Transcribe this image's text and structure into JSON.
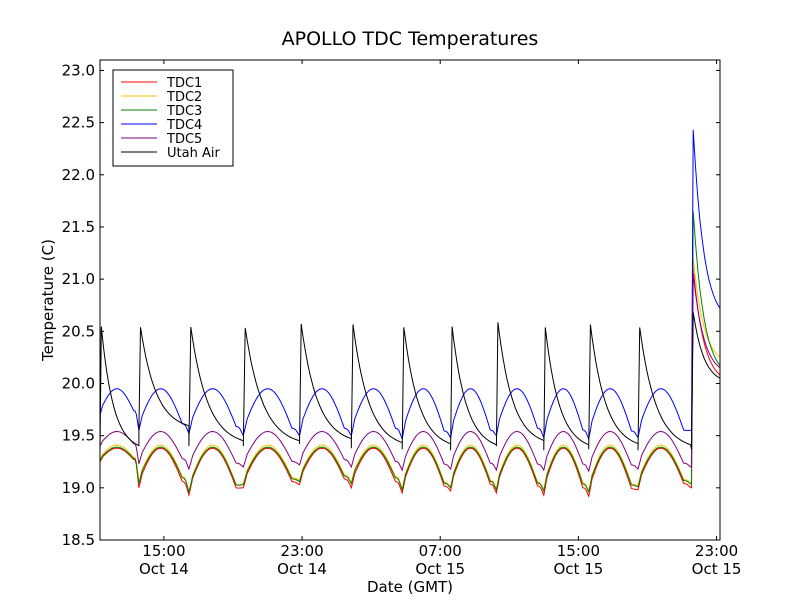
{
  "chart_data": {
    "type": "line",
    "title": "APOLLO TDC Temperatures",
    "xlabel": "Date (GMT)",
    "ylabel": "Temperature (C)",
    "xlim_hours": [
      11.3,
      47.2
    ],
    "ylim": [
      18.5,
      23.1
    ],
    "grid": false,
    "legend_position": "top-left",
    "x_ticks": [
      {
        "hour": 15,
        "time": "15:00",
        "date": "Oct 14"
      },
      {
        "hour": 23,
        "time": "23:00",
        "date": "Oct 14"
      },
      {
        "hour": 31,
        "time": "07:00",
        "date": "Oct 15"
      },
      {
        "hour": 39,
        "time": "15:00",
        "date": "Oct 15"
      },
      {
        "hour": 47,
        "time": "23:00",
        "date": "Oct 15"
      }
    ],
    "y_ticks": [
      "18.5",
      "19.0",
      "19.5",
      "20.0",
      "20.5",
      "21.0",
      "21.5",
      "22.0",
      "22.5",
      "23.0"
    ],
    "cycle_start_hours": [
      11.3,
      13.55,
      16.45,
      19.6,
      22.85,
      25.85,
      28.8,
      31.6,
      34.25,
      37.0,
      39.6,
      42.45,
      45.5,
      46.8
    ],
    "series": [
      {
        "name": "TDC1",
        "color": "#ff0000",
        "base": 19.02,
        "amp": 0.36,
        "mins": [
          19.25,
          19.0,
          18.93,
          19.0,
          19.03,
          19.0,
          18.95,
          18.97,
          18.95,
          18.93,
          18.92,
          18.98,
          19.0
        ],
        "end_peak": 21.1,
        "end": 20.08
      },
      {
        "name": "TDC2",
        "color": "#ffc000",
        "base": 19.05,
        "amp": 0.36,
        "mins": [
          19.27,
          19.05,
          18.96,
          19.04,
          19.07,
          19.05,
          18.99,
          19.01,
          18.99,
          18.98,
          18.97,
          19.02,
          19.05
        ],
        "end_peak": 21.2,
        "end": 20.25
      },
      {
        "name": "TDC3",
        "color": "#008000",
        "base": 19.04,
        "amp": 0.35,
        "mins": [
          19.26,
          19.04,
          18.96,
          19.03,
          19.06,
          19.04,
          18.98,
          19.0,
          18.98,
          18.97,
          18.96,
          19.01,
          19.04
        ],
        "end_peak": 21.65,
        "end": 20.17
      },
      {
        "name": "TDC4",
        "color": "#0000ff",
        "base": 19.55,
        "amp": 0.4,
        "mins": [
          19.7,
          19.55,
          19.52,
          19.5,
          19.5,
          19.5,
          19.47,
          19.48,
          19.5,
          19.48,
          19.47,
          19.48,
          19.55
        ],
        "end_peak": 22.43,
        "end": 20.72
      },
      {
        "name": "TDC5",
        "color": "#800080",
        "base": 19.24,
        "amp": 0.3,
        "mins": [
          19.4,
          19.23,
          19.18,
          19.2,
          19.22,
          19.2,
          19.17,
          19.18,
          19.17,
          19.17,
          19.16,
          19.18,
          19.2
        ],
        "end_peak": 21.05,
        "end": 20.15
      },
      {
        "name": "Utah Air",
        "color": "#000000",
        "peaks": [
          20.68,
          20.65,
          20.67,
          20.66,
          20.7,
          20.7,
          20.67,
          20.68,
          20.72,
          20.67,
          20.7,
          20.67
        ],
        "mins": [
          19.35,
          19.55,
          19.4,
          19.4,
          19.42,
          19.38,
          19.37,
          19.36,
          19.4,
          19.36,
          19.37,
          19.36,
          19.37
        ],
        "end_peak": 20.68,
        "end": 20.05
      }
    ]
  }
}
